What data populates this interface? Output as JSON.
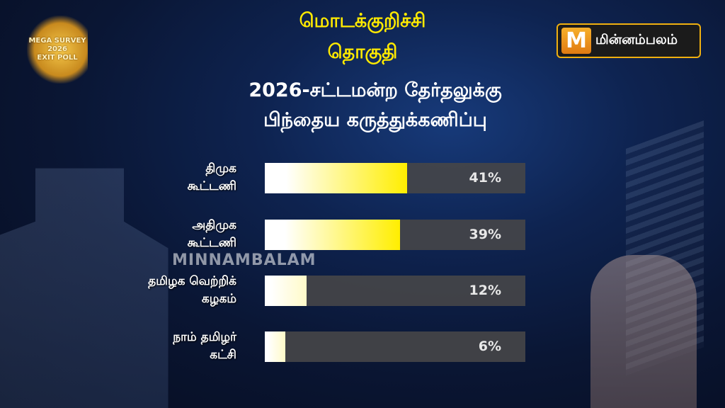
{
  "header": {
    "constituency_line1": "மொடக்குறிச்சி",
    "constituency_line2": "தொகுதி",
    "subtitle_line1": "2026-சட்டமன்ற தேர்தலுக்கு",
    "subtitle_line2": "பிந்தைய கருத்துக்கணிப்பு"
  },
  "logos": {
    "left": "MEGA SURVEY 2026 EXIT POLL",
    "right_mark": "M",
    "right_text": "மின்னம்பலம்",
    "watermark": "MINNAMBALAM"
  },
  "colors": {
    "bar_end": "#ffee00",
    "bar_start": "#ffffff",
    "track": "#464648",
    "title_accent": "#ffea00"
  },
  "chart_data": {
    "type": "bar",
    "orientation": "horizontal",
    "categories": [
      [
        "திமுக",
        "கூட்டணி"
      ],
      [
        "அதிமுக",
        "கூட்டணி"
      ],
      [
        "தமிழக வெற்றிக்",
        "கழகம்"
      ],
      [
        "நாம் தமிழர்",
        "கட்சி"
      ]
    ],
    "values": [
      41,
      39,
      12,
      6
    ],
    "value_labels": [
      "41%",
      "39%",
      "12%",
      "6%"
    ],
    "xlim": [
      0,
      75
    ],
    "grid": false,
    "title": "2026-சட்டமன்ற தேர்தலுக்கு பிந்தைய கருத்துக்கணிப்பு"
  }
}
